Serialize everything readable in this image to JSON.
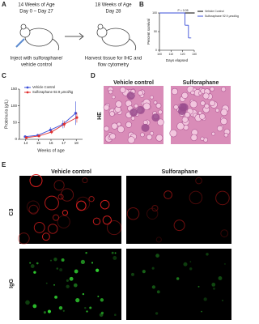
{
  "panel_labels": [
    "A",
    "B",
    "C",
    "D",
    "E"
  ],
  "schematic": {
    "start_age": "14 Weeks of Age",
    "start_days": "Day 0 ~ Day 27",
    "end_age": "18 Weeks of Age",
    "end_day": "Day 28",
    "start_caption": [
      "Inject with sulforaphane/",
      "vehicle control"
    ],
    "end_caption": [
      "Harvest tissue for IHC and",
      "flow cytometry"
    ]
  },
  "chart_data": [
    {
      "type": "survival",
      "xlabel": "Days elapsed",
      "ylabel": "Percent survival",
      "annotation": "P = 0.05",
      "xlim": [
        100,
        130
      ],
      "xticks": [
        100,
        110,
        120,
        130
      ],
      "ylim": [
        0,
        100
      ],
      "yticks": [
        0,
        50,
        100
      ],
      "series": [
        {
          "name": "Vehicle Control",
          "color": "#000000",
          "x": [
            100,
            130
          ],
          "values": [
            100,
            100
          ]
        },
        {
          "name": "Sulforaphane 92.9 µmol/kg",
          "color": "#3b4fd8",
          "x": [
            100,
            122,
            125,
            127
          ],
          "values": [
            100,
            67,
            33,
            33
          ]
        }
      ]
    },
    {
      "type": "line",
      "xlabel": "Weeks of age",
      "ylabel": "Proteinuria (g/L)",
      "x": [
        14,
        15,
        16,
        17,
        18
      ],
      "xlim": [
        13.5,
        18.5
      ],
      "xticks": [
        14,
        15,
        16,
        17,
        18
      ],
      "ylim": [
        0,
        150
      ],
      "yticks": [
        0,
        50,
        100,
        150
      ],
      "series": [
        {
          "name": "Vehicle Control",
          "color": "#3b4fd8",
          "values": [
            8,
            12,
            28,
            45,
            78
          ],
          "errors": [
            3,
            4,
            8,
            12,
            35
          ]
        },
        {
          "name": "Sulforaphane 92.9 µmol/kg",
          "color": "#e03030",
          "values": [
            5,
            10,
            22,
            45,
            65
          ],
          "errors": [
            2,
            3,
            6,
            10,
            15
          ]
        }
      ]
    }
  ],
  "histology": {
    "columns": [
      "Vehicle control",
      "Sulforaphane"
    ],
    "row": "HE"
  },
  "immunofluorescence": {
    "columns": [
      "Vehicle control",
      "Sulforaphane"
    ],
    "rows": [
      "C3",
      "IgG"
    ]
  }
}
